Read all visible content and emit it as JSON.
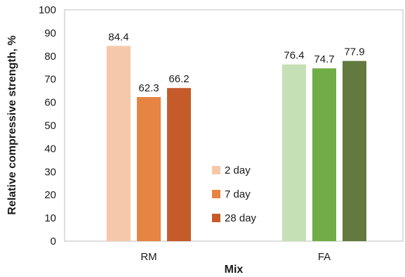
{
  "chart_data": {
    "type": "bar",
    "title": "",
    "xlabel": "Mix",
    "ylabel": "Relative compressive strength, %",
    "ylim": [
      0,
      100
    ],
    "yticks": [
      0,
      10,
      20,
      30,
      40,
      50,
      60,
      70,
      80,
      90,
      100
    ],
    "grid": false,
    "legend_position": "center-left-inside",
    "categories": [
      "RM",
      "FA"
    ],
    "series": [
      {
        "name": "2 day",
        "values": [
          84.4,
          76.4
        ],
        "colors": [
          "#f6c8aa",
          "#c5e0b4"
        ]
      },
      {
        "name": "7 day",
        "values": [
          62.3,
          74.7
        ],
        "colors": [
          "#e58443",
          "#70ad47"
        ]
      },
      {
        "name": "28 day",
        "values": [
          66.2,
          77.9
        ],
        "colors": [
          "#c55a2b",
          "#627a3f"
        ]
      }
    ],
    "data_labels": [
      [
        "84.4",
        "76.4"
      ],
      [
        "62.3",
        "74.7"
      ],
      [
        "66.2",
        "77.9"
      ]
    ]
  }
}
